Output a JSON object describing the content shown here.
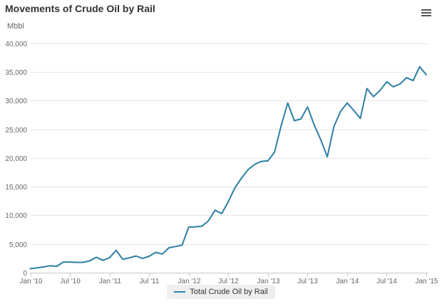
{
  "header": {
    "title": "Movements of Crude Oil by Rail"
  },
  "toolbar": {
    "menu_icon": "hamburger-icon"
  },
  "colors": {
    "series": "#2d7fa6",
    "grid": "#e6e6e6",
    "axis": "#c8c8c8",
    "tick_label": "#666666",
    "title": "#333333",
    "legend_bg": "#efefef"
  },
  "chart_data": {
    "type": "line",
    "title": "Movements of Crude Oil by Rail",
    "y_axis_title": "Mbbl",
    "ylim": [
      0,
      40000
    ],
    "grid": true,
    "legend_position": "bottom-center",
    "y_ticks": {
      "values": [
        0,
        5000,
        10000,
        15000,
        20000,
        25000,
        30000,
        35000,
        40000
      ],
      "labels": [
        "0",
        "5,000",
        "10,000",
        "15,000",
        "20,000",
        "25,000",
        "30,000",
        "35,000",
        "40,000"
      ]
    },
    "x_ticks": {
      "month_indices": [
        0,
        6,
        12,
        18,
        24,
        30,
        36,
        42,
        48,
        54,
        60
      ],
      "labels": [
        "Jan '10",
        "Jul '10",
        "Jan '11",
        "Jul '11",
        "Jan '12",
        "Jul '12",
        "Jan '13",
        "Jul '13",
        "Jan '14",
        "Jul '14",
        "Jan '15"
      ]
    },
    "x": [
      "2010-01",
      "2010-02",
      "2010-03",
      "2010-04",
      "2010-05",
      "2010-06",
      "2010-07",
      "2010-08",
      "2010-09",
      "2010-10",
      "2010-11",
      "2010-12",
      "2011-01",
      "2011-02",
      "2011-03",
      "2011-04",
      "2011-05",
      "2011-06",
      "2011-07",
      "2011-08",
      "2011-09",
      "2011-10",
      "2011-11",
      "2011-12",
      "2012-01",
      "2012-02",
      "2012-03",
      "2012-04",
      "2012-05",
      "2012-06",
      "2012-07",
      "2012-08",
      "2012-09",
      "2012-10",
      "2012-11",
      "2012-12",
      "2013-01",
      "2013-02",
      "2013-03",
      "2013-04",
      "2013-05",
      "2013-06",
      "2013-07",
      "2013-08",
      "2013-09",
      "2013-10",
      "2013-11",
      "2013-12",
      "2014-01",
      "2014-02",
      "2014-03",
      "2014-04",
      "2014-05",
      "2014-06",
      "2014-07",
      "2014-08",
      "2014-09",
      "2014-10",
      "2014-11",
      "2014-12",
      "2015-01"
    ],
    "series": [
      {
        "name": "Total Crude Oil by Rail",
        "color": "#2d7fa6",
        "values": [
          700,
          850,
          1000,
          1200,
          1100,
          1850,
          1850,
          1800,
          1800,
          2050,
          2700,
          2150,
          2600,
          3900,
          2350,
          2600,
          2900,
          2500,
          2850,
          3550,
          3250,
          4350,
          4550,
          4800,
          7950,
          8000,
          8100,
          9050,
          10900,
          10300,
          12400,
          14800,
          16500,
          17950,
          18900,
          19400,
          19500,
          21000,
          25600,
          29600,
          26500,
          26800,
          28900,
          25800,
          23200,
          20200,
          25500,
          28100,
          29600,
          28300,
          26900,
          32100,
          30700,
          31800,
          33300,
          32400,
          32900,
          34000,
          33500,
          35900,
          34500
        ]
      }
    ]
  }
}
